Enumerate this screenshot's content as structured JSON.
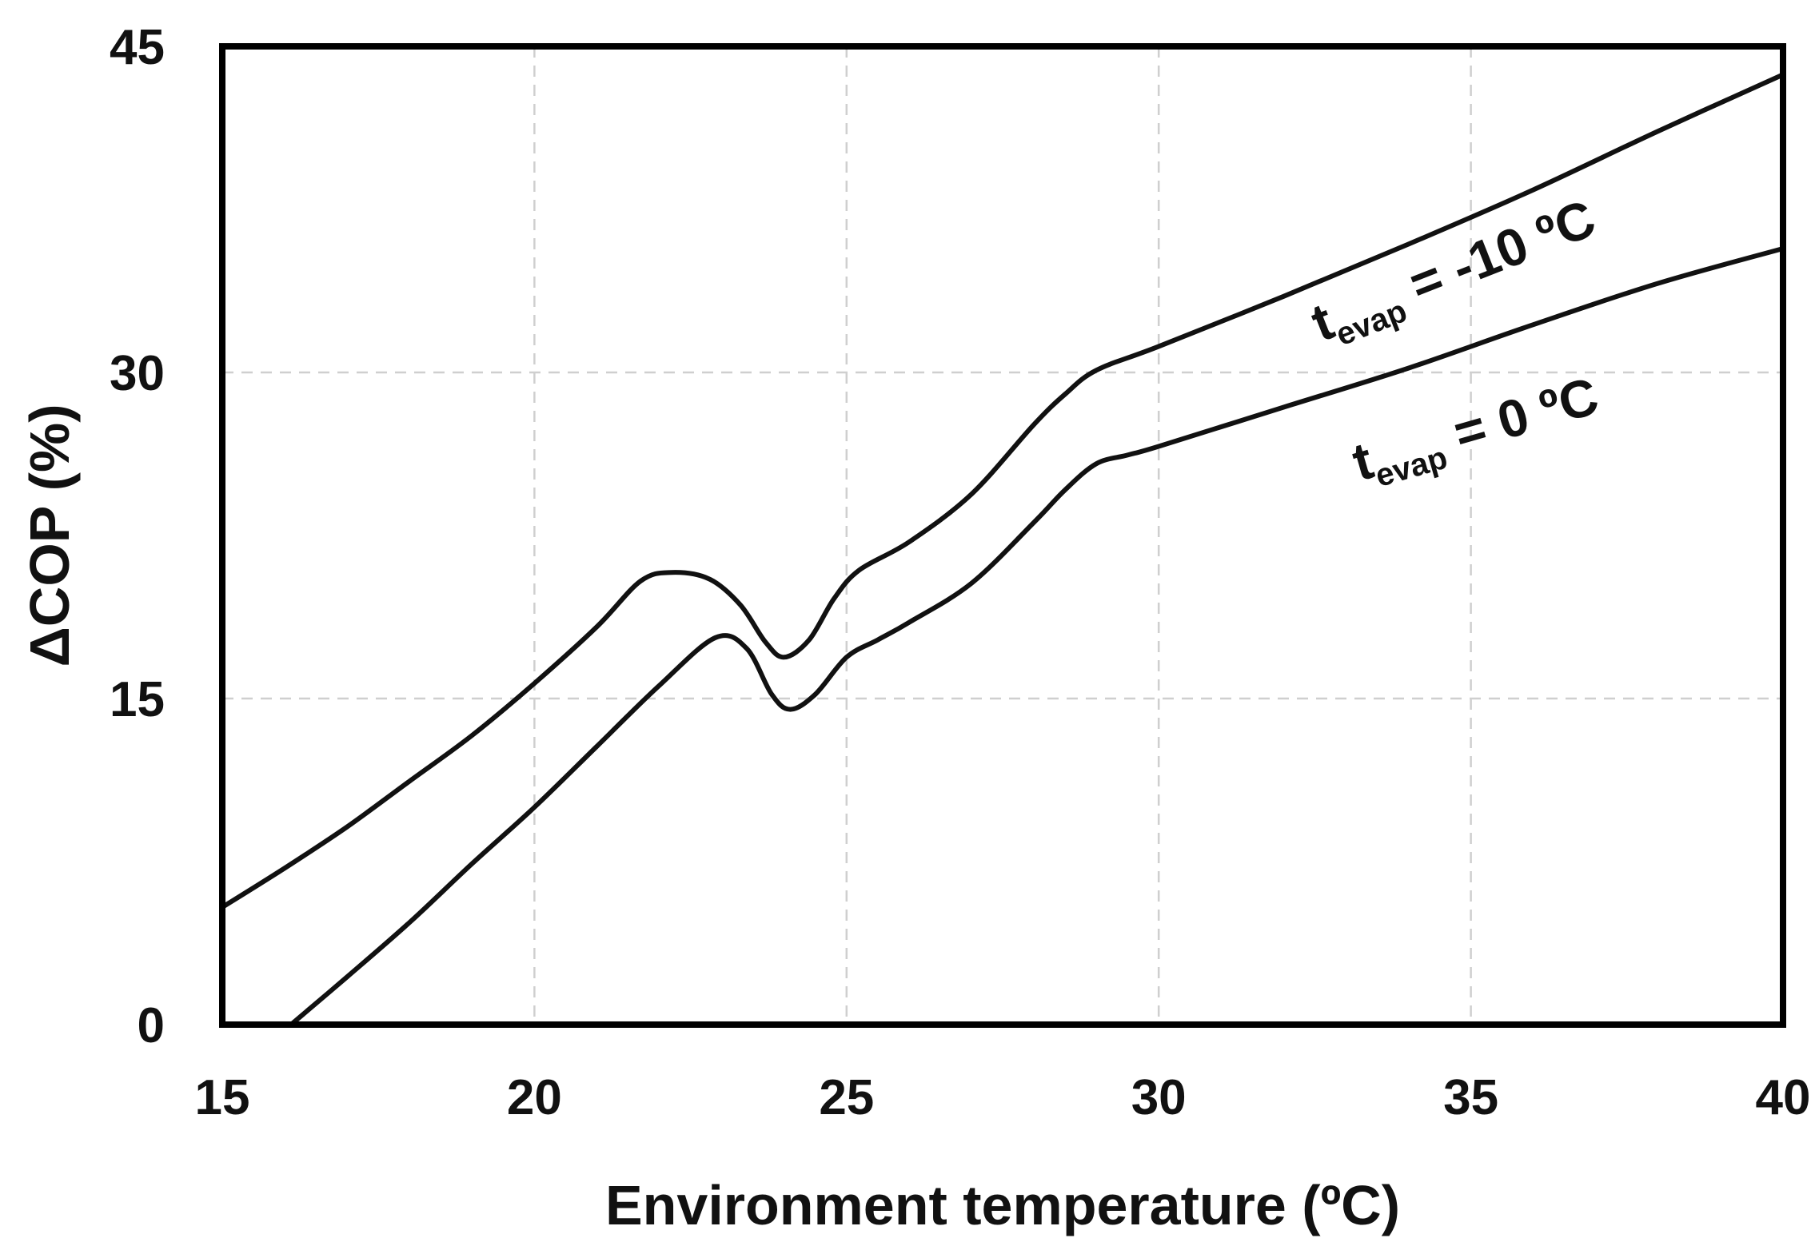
{
  "chart_data": {
    "type": "line",
    "title": "",
    "xlabel": "Environment temperature (ºC)",
    "ylabel": "ΔCOP  (%)",
    "xlim": [
      15,
      40
    ],
    "ylim": [
      0,
      45
    ],
    "xticks": [
      15,
      20,
      25,
      30,
      35,
      40
    ],
    "yticks": [
      0,
      15,
      30,
      45
    ],
    "xtick_labels": [
      "15",
      "20",
      "25",
      "30",
      "35",
      "40"
    ],
    "ytick_labels": [
      "0",
      "15",
      "30",
      "45"
    ],
    "grid": true,
    "series": [
      {
        "name": "tevap = -10 ºC",
        "label_main": "t",
        "label_sub": "evap",
        "label_rest": " = -10 ºC",
        "x": [
          15,
          16,
          17,
          18,
          19,
          20,
          21,
          21.7,
          22.2,
          22.8,
          23.3,
          23.7,
          24,
          24.4,
          24.8,
          25.2,
          26,
          27,
          28,
          28.5,
          29,
          30,
          32,
          34,
          36,
          38,
          40
        ],
        "y": [
          5.4,
          7.2,
          9.1,
          11.2,
          13.3,
          15.7,
          18.3,
          20.4,
          20.8,
          20.5,
          19.3,
          17.6,
          16.9,
          17.7,
          19.6,
          20.9,
          22.2,
          24.4,
          27.6,
          29,
          30.1,
          31.2,
          33.5,
          35.9,
          38.4,
          41.1,
          43.7
        ]
      },
      {
        "name": "tevap = 0 ºC",
        "label_main": "t",
        "label_sub": "evap",
        "label_rest": " = 0 ºC",
        "x": [
          16.1,
          17,
          18,
          19,
          20,
          21,
          22,
          22.9,
          23.4,
          23.8,
          24.1,
          24.5,
          25,
          25.5,
          26,
          27,
          28,
          28.5,
          29,
          29.5,
          30,
          32,
          34,
          36,
          38,
          40
        ],
        "y": [
          0,
          2.2,
          4.7,
          7.4,
          10,
          12.8,
          15.6,
          17.8,
          17.3,
          15.2,
          14.5,
          15.2,
          16.9,
          17.7,
          18.5,
          20.3,
          23.1,
          24.6,
          25.8,
          26.2,
          26.6,
          28.4,
          30.2,
          32.2,
          34.1,
          35.7
        ]
      }
    ]
  }
}
